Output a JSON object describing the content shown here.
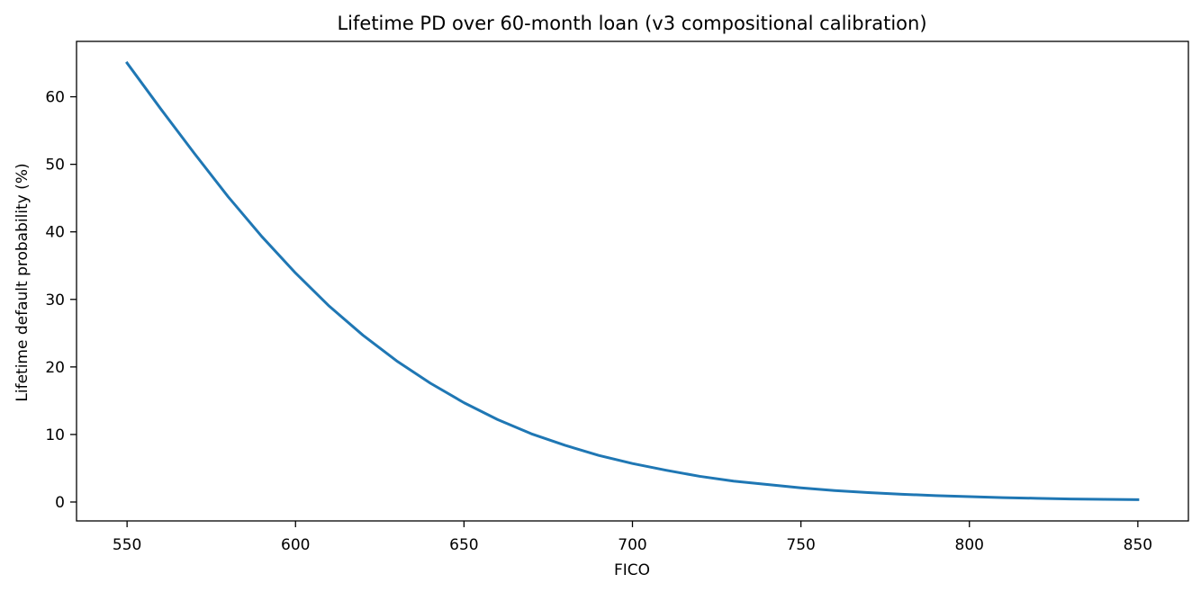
{
  "chart_data": {
    "type": "line",
    "title": "Lifetime PD over 60-month loan (v3 compositional calibration)",
    "xlabel": "FICO",
    "ylabel": "Lifetime default probability (%)",
    "xlim": [
      535,
      865
    ],
    "ylim": [
      -2.8,
      68.2
    ],
    "xticks": [
      550,
      600,
      650,
      700,
      750,
      800,
      850
    ],
    "yticks": [
      0,
      10,
      20,
      30,
      40,
      50,
      60
    ],
    "grid": false,
    "series": [
      {
        "color": "#1f77b4",
        "x": [
          550,
          560,
          570,
          580,
          590,
          600,
          610,
          620,
          630,
          640,
          650,
          660,
          670,
          680,
          690,
          700,
          710,
          720,
          730,
          740,
          750,
          760,
          770,
          780,
          790,
          800,
          810,
          820,
          830,
          840,
          850
        ],
        "y": [
          65.0,
          58.2,
          51.6,
          45.2,
          39.3,
          33.9,
          29.0,
          24.7,
          20.9,
          17.6,
          14.7,
          12.2,
          10.1,
          8.4,
          6.9,
          5.7,
          4.7,
          3.8,
          3.1,
          2.6,
          2.1,
          1.7,
          1.4,
          1.15,
          0.95,
          0.8,
          0.65,
          0.55,
          0.45,
          0.4,
          0.35
        ]
      }
    ]
  }
}
